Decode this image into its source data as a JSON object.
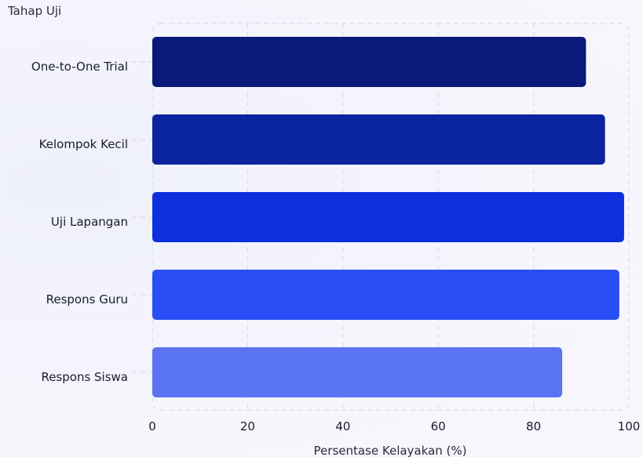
{
  "chart_data": {
    "type": "bar",
    "orientation": "horizontal",
    "title": "",
    "ylabel": "Tahap Uji",
    "xlabel": "Persentase Kelayakan (%)",
    "xlim": [
      0,
      100
    ],
    "xticks": [
      0,
      20,
      40,
      60,
      80,
      100
    ],
    "categories": [
      "One-to-One Trial",
      "Kelompok Kecil",
      "Uji Lapangan",
      "Respons Guru",
      "Respons Siswa"
    ],
    "values": [
      91,
      95,
      99,
      98,
      86
    ],
    "colors": [
      "#0a1a78",
      "#0b24a0",
      "#0d2fde",
      "#2a4ef5",
      "#5a74f2"
    ],
    "grid": true,
    "legend": "none"
  }
}
